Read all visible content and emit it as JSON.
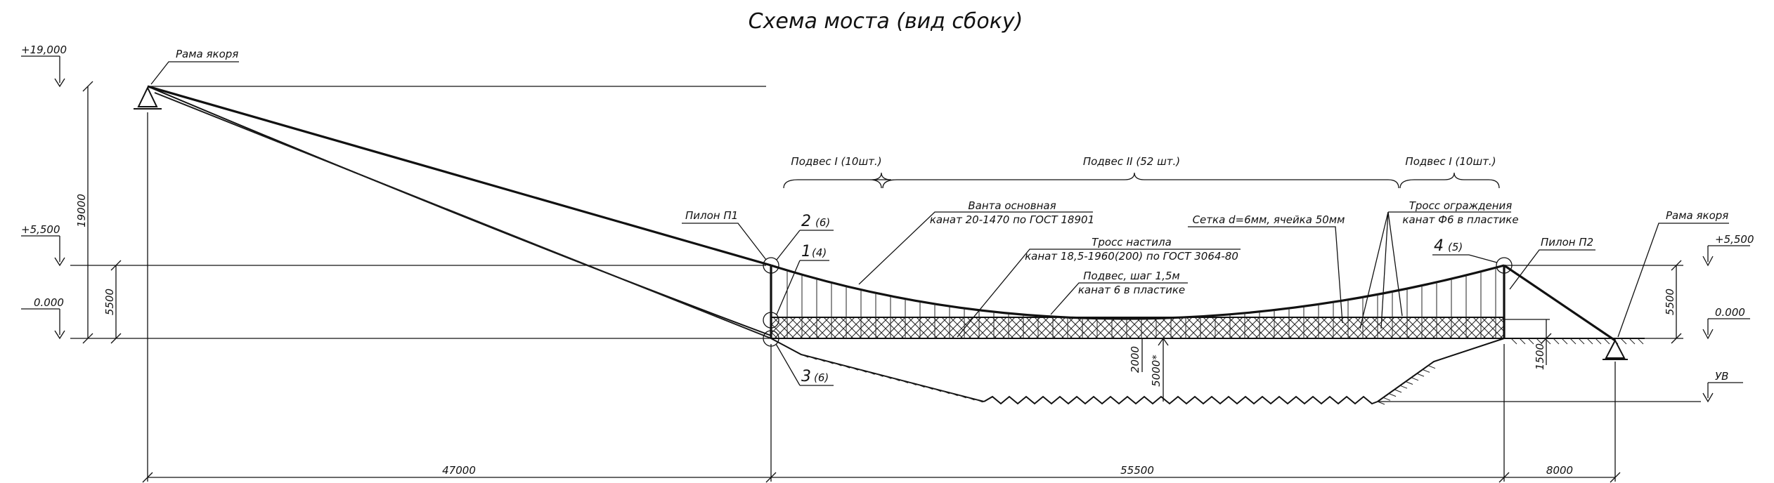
{
  "title": "Схема моста (вид сбоку)",
  "levels": {
    "top": "+19,000",
    "pylon": "+5,500",
    "deck": "0.000",
    "right_pylon": "+5,500",
    "right_deck": "0.000",
    "water": "УВ"
  },
  "labels": {
    "anchor_frame_left": "Рама якоря",
    "anchor_frame_right": "Рама якоря",
    "pylon_1": "Пилон П1",
    "pylon_2": "Пилон П2",
    "main_cable_line1": "Ванта основная",
    "main_cable_line2": "канат 20-1470 по ГОСТ 18901",
    "deck_cable_line1": "Тросс настила",
    "deck_cable_line2": "канат 18,5-1960(200) по ГОСТ 3064-80",
    "hanger_line1": "Подвес, шаг 1,5м",
    "hanger_line2": "канат 6 в пластике",
    "mesh": "Сетка d=6мм, ячейка 50мм",
    "railing_line1": "Тросс ограждения",
    "railing_line2": "канат Ф6 в пластике",
    "hanger_group_left": "Подвес I (10шт.)",
    "hanger_group_mid": "Подвес II (52 шт.)",
    "hanger_group_right": "Подвес I (10шт.)"
  },
  "nodes": [
    {
      "num": "2",
      "count": "(6)"
    },
    {
      "num": "1",
      "count": "(4)"
    },
    {
      "num": "3",
      "count": "(6)"
    },
    {
      "num": "4",
      "count": "(5)"
    }
  ],
  "dimensions": {
    "left_height": "19000",
    "left_pylon_height": "5500",
    "right_pylon_height": "5500",
    "depth_2000": "2000",
    "depth_5000": "5000*",
    "right_1500": "1500",
    "span_left": "47000",
    "span_main": "55500",
    "span_right": "8000"
  }
}
